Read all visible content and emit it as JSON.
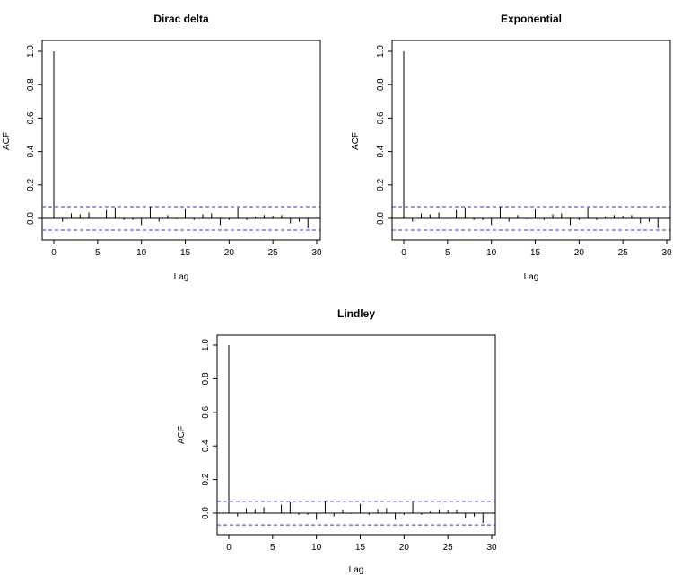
{
  "chart_data": [
    {
      "type": "bar",
      "title": "Dirac delta",
      "xlabel": "Lag",
      "ylabel": "ACF",
      "xlim": [
        0,
        30
      ],
      "ylim": [
        -0.07,
        1.0
      ],
      "xticks": [
        "0",
        "5",
        "10",
        "15",
        "20",
        "25",
        "30"
      ],
      "yticks": [
        "0.0",
        "0.2",
        "0.4",
        "0.6",
        "0.8",
        "1.0"
      ],
      "confidence_band": 0.07,
      "lags": [
        0,
        1,
        2,
        3,
        4,
        5,
        6,
        7,
        8,
        9,
        10,
        11,
        12,
        13,
        14,
        15,
        16,
        17,
        18,
        19,
        20,
        21,
        22,
        23,
        24,
        25,
        26,
        27,
        28,
        29
      ],
      "values": [
        1.0,
        -0.02,
        0.03,
        0.025,
        0.035,
        0.0,
        0.05,
        0.065,
        -0.01,
        -0.01,
        -0.04,
        0.07,
        -0.02,
        0.02,
        -0.005,
        0.055,
        -0.01,
        0.025,
        0.03,
        -0.04,
        -0.01,
        0.065,
        -0.01,
        0.01,
        0.02,
        0.015,
        0.02,
        -0.03,
        -0.02,
        -0.06
      ],
      "grid": false,
      "colors": {
        "line": "#000000",
        "band": "#3333cc"
      }
    },
    {
      "type": "bar",
      "title": "Exponential",
      "xlabel": "Lag",
      "ylabel": "ACF",
      "xlim": [
        0,
        30
      ],
      "ylim": [
        -0.07,
        1.0
      ],
      "xticks": [
        "0",
        "5",
        "10",
        "15",
        "20",
        "25",
        "30"
      ],
      "yticks": [
        "0.0",
        "0.2",
        "0.4",
        "0.6",
        "0.8",
        "1.0"
      ],
      "confidence_band": 0.07,
      "lags": [
        0,
        1,
        2,
        3,
        4,
        5,
        6,
        7,
        8,
        9,
        10,
        11,
        12,
        13,
        14,
        15,
        16,
        17,
        18,
        19,
        20,
        21,
        22,
        23,
        24,
        25,
        26,
        27,
        28,
        29
      ],
      "values": [
        1.0,
        -0.02,
        0.03,
        0.025,
        0.035,
        0.0,
        0.05,
        0.065,
        -0.01,
        -0.01,
        -0.04,
        0.07,
        -0.02,
        0.02,
        -0.005,
        0.055,
        -0.01,
        0.025,
        0.03,
        -0.04,
        -0.01,
        0.065,
        -0.01,
        0.01,
        0.02,
        0.015,
        0.02,
        -0.03,
        -0.02,
        -0.06
      ],
      "grid": false,
      "colors": {
        "line": "#000000",
        "band": "#3333cc"
      }
    },
    {
      "type": "bar",
      "title": "Lindley",
      "xlabel": "Lag",
      "ylabel": "ACF",
      "xlim": [
        0,
        30
      ],
      "ylim": [
        -0.07,
        1.0
      ],
      "xticks": [
        "0",
        "5",
        "10",
        "15",
        "20",
        "25",
        "30"
      ],
      "yticks": [
        "0.0",
        "0.2",
        "0.4",
        "0.6",
        "0.8",
        "1.0"
      ],
      "confidence_band": 0.07,
      "lags": [
        0,
        1,
        2,
        3,
        4,
        5,
        6,
        7,
        8,
        9,
        10,
        11,
        12,
        13,
        14,
        15,
        16,
        17,
        18,
        19,
        20,
        21,
        22,
        23,
        24,
        25,
        26,
        27,
        28,
        29
      ],
      "values": [
        1.0,
        -0.02,
        0.03,
        0.025,
        0.035,
        0.0,
        0.05,
        0.065,
        -0.01,
        -0.01,
        -0.04,
        0.07,
        -0.02,
        0.02,
        -0.005,
        0.055,
        -0.01,
        0.025,
        0.03,
        -0.04,
        -0.01,
        0.065,
        -0.01,
        0.01,
        0.02,
        0.015,
        0.02,
        -0.03,
        -0.02,
        -0.06
      ],
      "grid": false,
      "colors": {
        "line": "#000000",
        "band": "#3333cc"
      }
    }
  ]
}
